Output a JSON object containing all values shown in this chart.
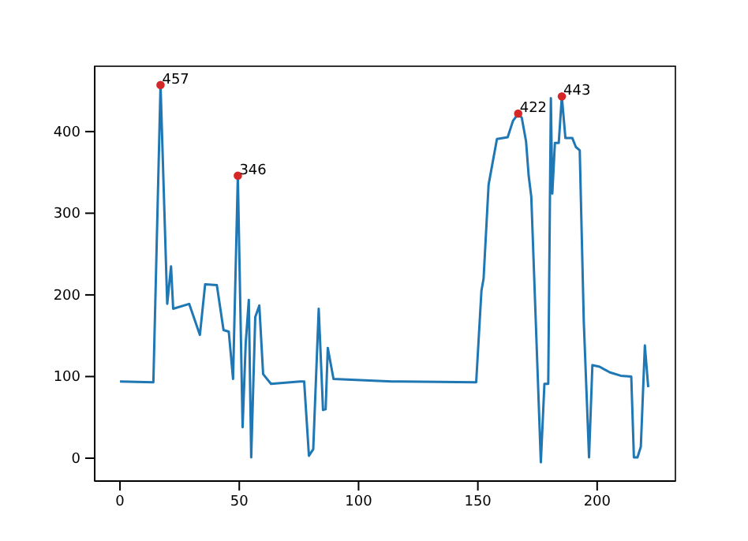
{
  "chart_data": {
    "type": "line",
    "xlim": [
      -10.6,
      232.8
    ],
    "ylim": [
      -28,
      480
    ],
    "xticks": [
      0,
      50,
      100,
      150,
      200
    ],
    "yticks": [
      0,
      100,
      200,
      300,
      400
    ],
    "grid": false,
    "series": [
      {
        "color": "#1f77b4",
        "marker": "none",
        "x": [
          0,
          14,
          17,
          19.8,
          21.4,
          22.3,
          29,
          33.5,
          35.7,
          40.6,
          43.4,
          45.6,
          47.4,
          49.4,
          51.4,
          52.7,
          54,
          55,
          56.7,
          58.4,
          60,
          63.3,
          75.4,
          77.2,
          79.2,
          81,
          83.3,
          85.1,
          86.2,
          87.1,
          89.5,
          114,
          149.3,
          151.5,
          152.4,
          154.5,
          158,
          162.5,
          164.7,
          166.9,
          168.4,
          170.2,
          171.3,
          172.4,
          176.4,
          177.9,
          179.5,
          180.6,
          181.2,
          182.3,
          183.9,
          185.2,
          186.7,
          189.6,
          191.1,
          192.7,
          194.4,
          196.6,
          198,
          201,
          205.4,
          209.9,
          214.3,
          215.4,
          216.9,
          218.3,
          220,
          221.4
        ],
        "values": [
          94,
          93,
          457,
          189,
          235,
          183,
          189,
          151,
          213,
          212,
          157,
          155,
          97,
          346,
          38,
          141,
          194,
          1,
          173,
          187,
          103,
          91,
          94,
          94,
          3,
          11,
          183,
          59,
          60,
          135,
          97,
          94,
          93,
          205,
          220,
          335,
          391,
          393,
          413,
          422,
          417,
          388,
          346,
          320,
          -5,
          91,
          91,
          441,
          324,
          386,
          386,
          443,
          392,
          392,
          381,
          377,
          167,
          1,
          114,
          112,
          105,
          101,
          100,
          1,
          1,
          14,
          138,
          87
        ]
      },
      {
        "type": "scatter",
        "color": "#d62728",
        "marker": "circle",
        "x": [
          17,
          49.4,
          166.9,
          185.2
        ],
        "values": [
          457,
          346,
          422,
          443
        ],
        "value_labels": [
          "457",
          "346",
          "422",
          "443"
        ]
      }
    ]
  }
}
